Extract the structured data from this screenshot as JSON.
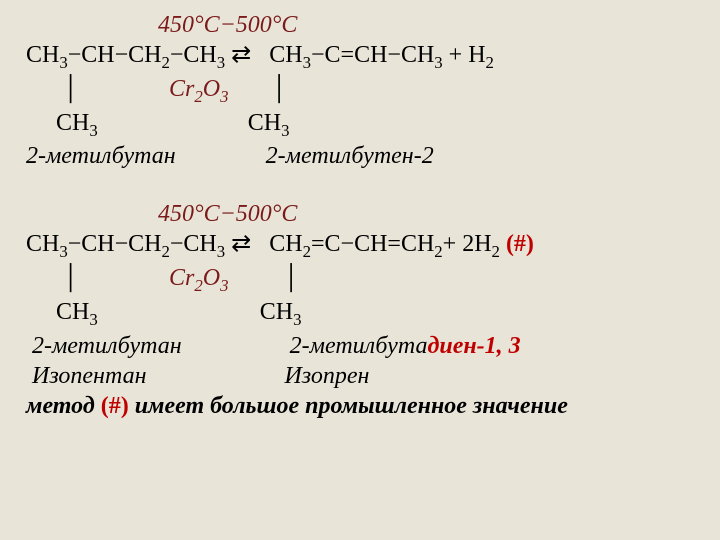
{
  "reaction1": {
    "cond_top": "450°С−500°С",
    "left_main": "CH3−CH−CH2−CH3",
    "arrow": "⇄",
    "right_main": "CH3−C=CH−CH3 + H2",
    "cat": "Cr2O3",
    "left_branch": "CH3",
    "right_branch": "CH3",
    "left_name": "2-метилбутан",
    "right_name": "2-метилбутен-2"
  },
  "reaction2": {
    "cond_top": "450°С−500°С",
    "left_main": "CH3−CH−CH2−CH3",
    "arrow": "⇄",
    "right_main": "CH2=C−CH=CH2+ 2H2",
    "marker": "(#)",
    "cat": "Cr2O3",
    "left_branch": "CH3",
    "right_branch": "CH3",
    "left_name": "2-метилбутан",
    "right_name_pre": "2-метилбута",
    "right_name_red": "диен-1, 3",
    "left_name2": "Изопентан",
    "right_name2": "Изопрен"
  },
  "footer": {
    "pre": "метод ",
    "marker": "(#)",
    "post": " имеет большое промышленное значение"
  }
}
